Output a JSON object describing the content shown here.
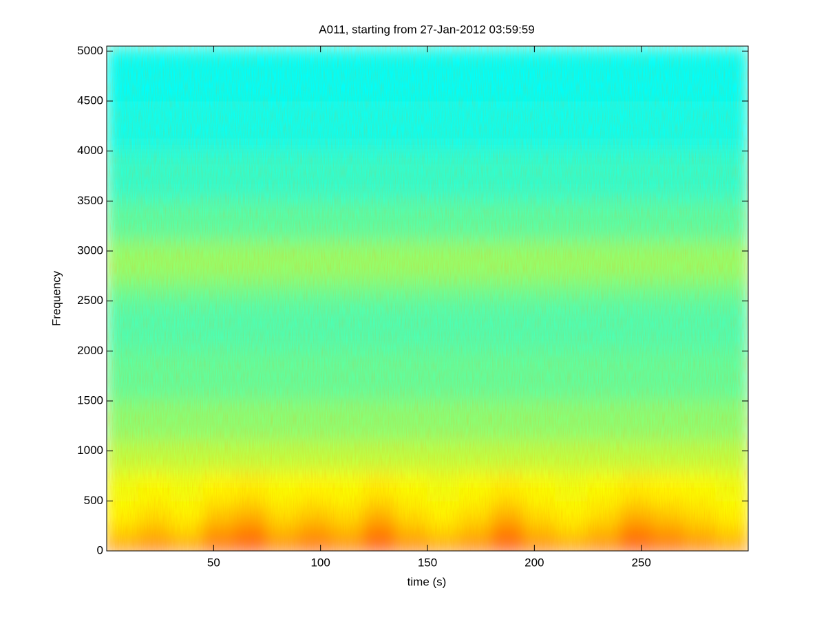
{
  "chart_data": {
    "type": "spectrogram",
    "title": "A011, starting from 27-Jan-2012 03:59:59",
    "xlabel": "time (s)",
    "ylabel": "Frequency",
    "xlim": [
      0,
      300
    ],
    "ylim": [
      0,
      5050
    ],
    "xticks": [
      50,
      100,
      150,
      200,
      250
    ],
    "yticks": [
      0,
      500,
      1000,
      1500,
      2000,
      2500,
      3000,
      3500,
      4000,
      4500,
      5000
    ],
    "colormap": "jet",
    "clim": [
      0,
      1
    ],
    "time_bins": [
      0,
      15,
      30,
      45,
      60,
      75,
      90,
      105,
      120,
      135,
      150,
      165,
      180,
      195,
      210,
      225,
      240,
      255,
      270,
      285,
      300
    ],
    "frequency_bins": [
      0,
      100,
      300,
      500,
      800,
      1100,
      1500,
      2000,
      2500,
      2700,
      3100,
      3500,
      4000,
      4500,
      5050
    ],
    "values": [
      [
        0.76,
        0.79,
        0.76,
        0.82,
        0.85,
        0.79,
        0.82,
        0.79,
        0.85,
        0.79,
        0.76,
        0.79,
        0.85,
        0.79,
        0.76,
        0.79,
        0.85,
        0.82,
        0.79,
        0.76
      ],
      [
        0.66,
        0.69,
        0.66,
        0.72,
        0.75,
        0.69,
        0.72,
        0.69,
        0.75,
        0.69,
        0.66,
        0.69,
        0.75,
        0.69,
        0.66,
        0.69,
        0.75,
        0.72,
        0.69,
        0.66
      ],
      [
        0.63,
        0.65,
        0.63,
        0.67,
        0.69,
        0.65,
        0.67,
        0.65,
        0.69,
        0.65,
        0.63,
        0.65,
        0.69,
        0.65,
        0.63,
        0.65,
        0.69,
        0.67,
        0.65,
        0.63
      ],
      [
        0.61,
        0.62,
        0.61,
        0.63,
        0.64,
        0.62,
        0.63,
        0.62,
        0.64,
        0.62,
        0.61,
        0.62,
        0.64,
        0.62,
        0.61,
        0.62,
        0.64,
        0.63,
        0.62,
        0.61
      ],
      [
        0.56,
        0.56,
        0.56,
        0.56,
        0.56,
        0.56,
        0.56,
        0.56,
        0.56,
        0.56,
        0.56,
        0.56,
        0.56,
        0.56,
        0.56,
        0.56,
        0.56,
        0.56,
        0.56,
        0.56
      ],
      [
        0.51,
        0.51,
        0.51,
        0.51,
        0.51,
        0.51,
        0.51,
        0.51,
        0.51,
        0.51,
        0.51,
        0.51,
        0.51,
        0.51,
        0.51,
        0.51,
        0.51,
        0.51,
        0.51,
        0.51
      ],
      [
        0.47,
        0.47,
        0.47,
        0.47,
        0.47,
        0.47,
        0.47,
        0.47,
        0.47,
        0.47,
        0.47,
        0.47,
        0.47,
        0.47,
        0.47,
        0.47,
        0.47,
        0.47,
        0.47,
        0.47
      ],
      [
        0.45,
        0.45,
        0.45,
        0.45,
        0.45,
        0.45,
        0.45,
        0.45,
        0.45,
        0.45,
        0.45,
        0.45,
        0.45,
        0.45,
        0.45,
        0.45,
        0.45,
        0.45,
        0.45,
        0.45
      ],
      [
        0.48,
        0.48,
        0.48,
        0.48,
        0.48,
        0.48,
        0.48,
        0.48,
        0.48,
        0.48,
        0.48,
        0.48,
        0.48,
        0.48,
        0.48,
        0.48,
        0.48,
        0.48,
        0.48,
        0.48
      ],
      [
        0.52,
        0.52,
        0.52,
        0.52,
        0.52,
        0.52,
        0.52,
        0.52,
        0.52,
        0.52,
        0.52,
        0.52,
        0.52,
        0.52,
        0.52,
        0.52,
        0.52,
        0.52,
        0.52,
        0.52
      ],
      [
        0.46,
        0.46,
        0.46,
        0.46,
        0.46,
        0.46,
        0.46,
        0.46,
        0.46,
        0.46,
        0.46,
        0.46,
        0.46,
        0.46,
        0.46,
        0.46,
        0.46,
        0.46,
        0.46,
        0.46
      ],
      [
        0.42,
        0.42,
        0.42,
        0.42,
        0.42,
        0.42,
        0.42,
        0.42,
        0.42,
        0.42,
        0.42,
        0.42,
        0.42,
        0.42,
        0.42,
        0.42,
        0.42,
        0.42,
        0.42,
        0.42
      ],
      [
        0.39,
        0.39,
        0.39,
        0.39,
        0.39,
        0.39,
        0.39,
        0.39,
        0.39,
        0.39,
        0.39,
        0.39,
        0.39,
        0.39,
        0.39,
        0.39,
        0.39,
        0.39,
        0.39,
        0.39
      ],
      [
        0.38,
        0.38,
        0.38,
        0.38,
        0.38,
        0.38,
        0.38,
        0.38,
        0.38,
        0.38,
        0.38,
        0.38,
        0.38,
        0.38,
        0.38,
        0.38,
        0.38,
        0.38,
        0.38,
        0.38
      ]
    ]
  }
}
